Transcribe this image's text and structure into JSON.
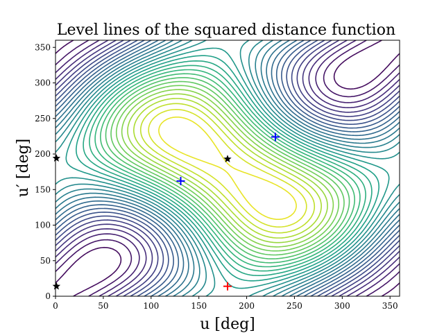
{
  "chart_data": {
    "type": "contour",
    "title": "Level lines of the squared distance function",
    "xlabel": "u [deg]",
    "ylabel": "u′ [deg]",
    "xlim": [
      0,
      360
    ],
    "ylim": [
      0,
      360
    ],
    "xticks": [
      "0",
      "50",
      "100",
      "150",
      "200",
      "250",
      "300",
      "350"
    ],
    "yticks": [
      "0",
      "50",
      "100",
      "150",
      "200",
      "250",
      "300",
      "350"
    ],
    "xtick_values": [
      0,
      50,
      100,
      150,
      200,
      250,
      300,
      350
    ],
    "ytick_values": [
      0,
      50,
      100,
      150,
      200,
      250,
      300,
      350
    ],
    "colormap": "viridis",
    "grid": false,
    "markers": {
      "blue_plus": [
        {
          "x": 131,
          "y": 162
        },
        {
          "x": 230,
          "y": 224
        }
      ],
      "red_plus": [
        {
          "x": 180,
          "y": 14
        }
      ],
      "black_star": [
        {
          "x": 180,
          "y": 193
        },
        {
          "x": 1,
          "y": 194
        },
        {
          "x": 1,
          "y": 14
        }
      ]
    },
    "colors": {
      "blue_plus": "#0000ff",
      "red_plus": "#ff0000",
      "black_star": "#000000"
    }
  }
}
